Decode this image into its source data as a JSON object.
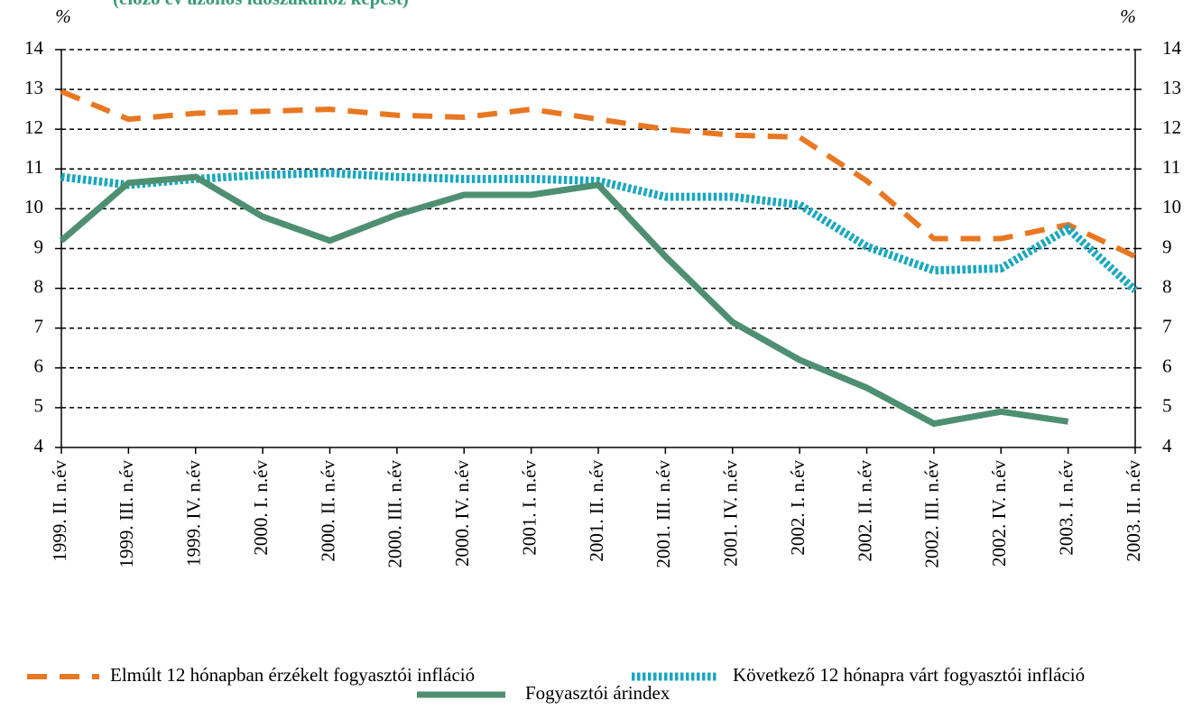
{
  "chart_data": {
    "type": "line",
    "subtitle": "(előző év azonos időszakához képest)",
    "y_label": "%",
    "y2_label": "%",
    "categories": [
      "1999. II. n.év",
      "1999. III. n.év",
      "1999. IV. n.év",
      "2000. I. n.év",
      "2000. II. n.év",
      "2000. III. n.év",
      "2000. IV. n.év",
      "2001. I. n.év",
      "2001. II. n.év",
      "2001. III. n.év",
      "2001. IV. n.év",
      "2002. I. n.év",
      "2002. II. n.év",
      "2002. III. n.év",
      "2002. IV. n.év",
      "2003. I. n.év",
      "2003. II. n.év"
    ],
    "series": [
      {
        "name": "Elmúlt 12 hónapban érzékelt fogyasztói infláció",
        "color": "#e87722",
        "line_style": "dashed",
        "values": [
          12.95,
          12.25,
          12.4,
          12.45,
          12.5,
          12.35,
          12.3,
          12.5,
          12.25,
          12.0,
          11.85,
          11.8,
          10.7,
          9.25,
          9.25,
          9.6,
          8.8
        ]
      },
      {
        "name": "Következő 12 hónapra várt fogyasztói infláció",
        "color": "#1aa7bf",
        "line_style": "dotted",
        "values": [
          10.8,
          10.6,
          10.75,
          10.85,
          10.9,
          10.8,
          10.75,
          10.75,
          10.7,
          10.3,
          10.3,
          10.1,
          9.05,
          8.45,
          8.5,
          9.5,
          7.95
        ]
      },
      {
        "name": "Fogyasztói árindex",
        "color": "#4e8f72",
        "line_style": "solid",
        "values": [
          9.2,
          10.65,
          10.8,
          9.8,
          9.2,
          9.85,
          10.35,
          10.35,
          10.6,
          8.8,
          7.15,
          6.2,
          5.5,
          4.6,
          4.9,
          4.65,
          null
        ]
      }
    ],
    "ylim": [
      4,
      14
    ],
    "yticks": [
      4,
      5,
      6,
      7,
      8,
      9,
      10,
      11,
      12,
      13,
      14
    ],
    "y2lim": [
      4,
      14
    ],
    "y2ticks": [
      4,
      5,
      6,
      7,
      8,
      9,
      10,
      11,
      12,
      13,
      14
    ],
    "grid": true
  }
}
